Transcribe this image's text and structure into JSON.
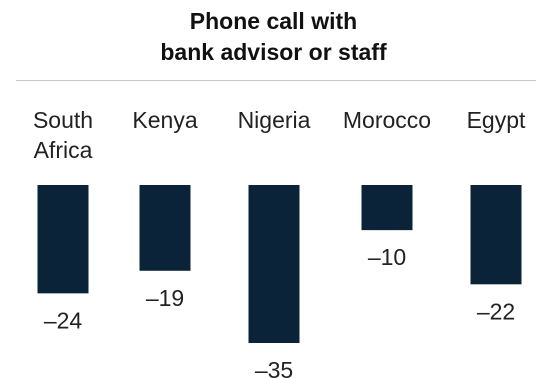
{
  "chart_data": {
    "type": "bar",
    "title_lines": [
      "Phone call with",
      "bank advisor or staff"
    ],
    "categories": [
      [
        "South",
        "Africa"
      ],
      [
        "Kenya"
      ],
      [
        "Nigeria"
      ],
      [
        "Morocco"
      ],
      [
        "Egypt"
      ]
    ],
    "values": [
      -24,
      -19,
      -35,
      -10,
      -22
    ],
    "value_labels": [
      "–24",
      "–19",
      "–35",
      "–10",
      "–22"
    ],
    "ylim": [
      -35,
      0
    ],
    "bar_color": "#0b2338",
    "grid": false,
    "legend": "none"
  }
}
